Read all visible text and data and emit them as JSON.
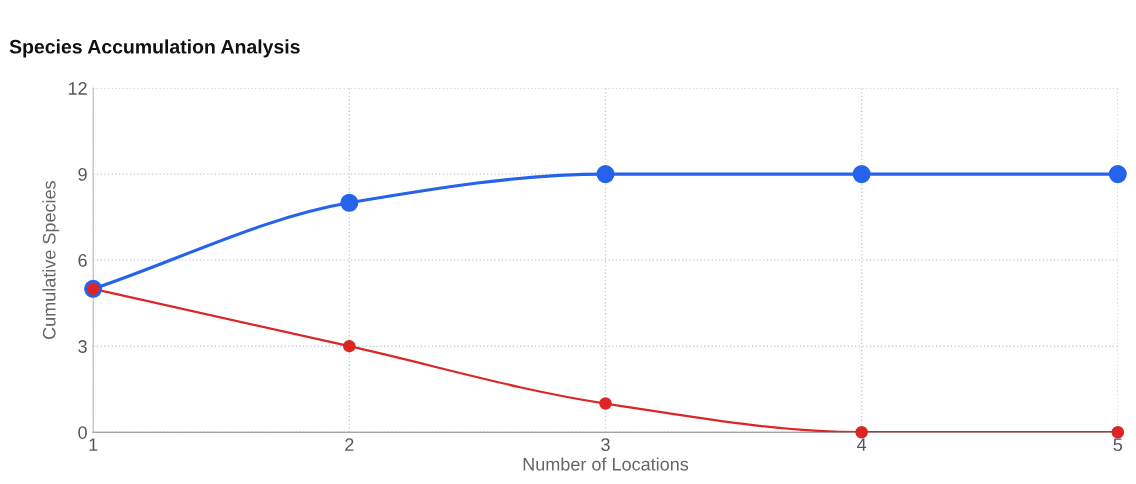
{
  "chart_data": {
    "type": "line",
    "title": "Species Accumulation Analysis",
    "xlabel": "Number of Locations",
    "ylabel": "Cumulative Species",
    "x": [
      1,
      2,
      3,
      4,
      5
    ],
    "series": [
      {
        "color": "#2563eb",
        "values": [
          5,
          8,
          9,
          9,
          9
        ]
      },
      {
        "color": "#dc2626",
        "values": [
          5,
          3,
          1,
          0,
          0
        ]
      }
    ],
    "xlim": [
      1,
      5
    ],
    "xticks": [
      1,
      2,
      3,
      4,
      5
    ],
    "ylim": [
      0,
      12
    ],
    "yticks": [
      0,
      3,
      6,
      9,
      12
    ],
    "grid": true,
    "marker": "circle",
    "line_style": "solid"
  }
}
